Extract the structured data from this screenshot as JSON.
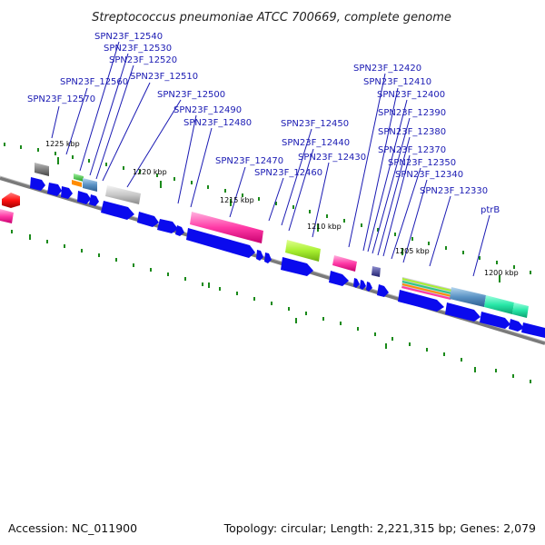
{
  "title": "Streptococcus pneumoniae ATCC 700669, complete genome",
  "footer": {
    "accession": "Accession: NC_011900",
    "topology": "Topology: circular; Length: 2,221,315 bp; Genes: 2,079"
  },
  "ticks": [
    "1225 kbp",
    "1220 kbp",
    "1215 kbp",
    "1210 kbp",
    "1205 kbp",
    "1200 kbp"
  ],
  "gene_labels": [
    "SPN23F_12540",
    "SPN23F_12530",
    "SPN23F_12520",
    "SPN23F_12510",
    "SPN23F_12560",
    "SPN23F_12500",
    "SPN23F_12570",
    "SPN23F_12490",
    "SPN23F_12480",
    "SPN23F_12470",
    "SPN23F_12460",
    "SPN23F_12450",
    "SPN23F_12440",
    "SPN23F_12430",
    "SPN23F_12420",
    "SPN23F_12410",
    "SPN23F_12400",
    "SPN23F_12390",
    "SPN23F_12380",
    "SPN23F_12370",
    "SPN23F_12350",
    "SPN23F_12340",
    "SPN23F_12330",
    "ptrB"
  ],
  "colors": {
    "gene_blue": "#0a0aee",
    "backbone": "#808080",
    "tick_green": "#1a8a1a",
    "label_blue": "#1a1ab3"
  }
}
